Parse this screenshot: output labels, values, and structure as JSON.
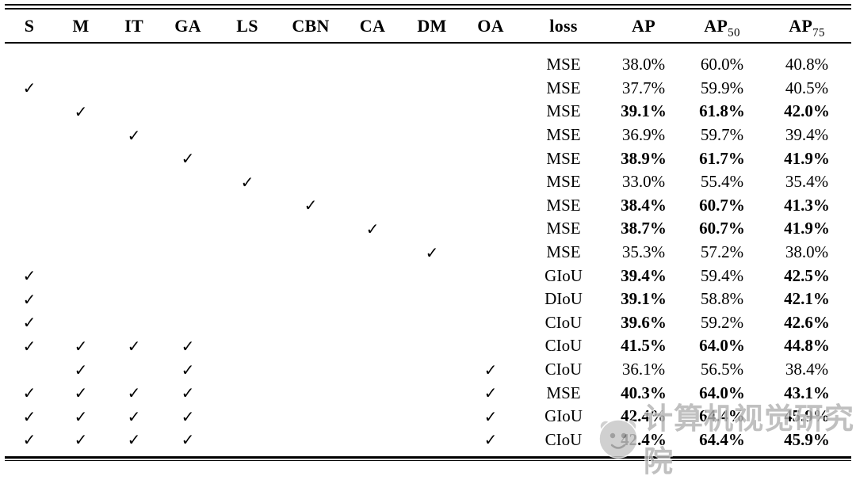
{
  "meta": {
    "description_label": "ablation study table",
    "background_color": "#ffffff",
    "text_color": "#000000"
  },
  "table": {
    "check_glyph": "✓",
    "columns": [
      {
        "key": "s",
        "label": "S"
      },
      {
        "key": "m",
        "label": "M"
      },
      {
        "key": "it",
        "label": "IT"
      },
      {
        "key": "ga",
        "label": "GA"
      },
      {
        "key": "ls",
        "label": "LS"
      },
      {
        "key": "cbn",
        "label": "CBN"
      },
      {
        "key": "ca",
        "label": "CA"
      },
      {
        "key": "dm",
        "label": "DM"
      },
      {
        "key": "oa",
        "label": "OA"
      },
      {
        "key": "loss",
        "label": "loss"
      },
      {
        "key": "ap",
        "label": "AP"
      },
      {
        "key": "ap50",
        "label": "AP",
        "sub": "50"
      },
      {
        "key": "ap75",
        "label": "AP",
        "sub": "75"
      }
    ],
    "rows": [
      {
        "checks": [],
        "loss": "MSE",
        "ap": "38.0%",
        "ap50": "60.0%",
        "ap75": "40.8%",
        "bold": []
      },
      {
        "checks": [
          "s"
        ],
        "loss": "MSE",
        "ap": "37.7%",
        "ap50": "59.9%",
        "ap75": "40.5%",
        "bold": []
      },
      {
        "checks": [
          "m"
        ],
        "loss": "MSE",
        "ap": "39.1%",
        "ap50": "61.8%",
        "ap75": "42.0%",
        "bold": [
          "ap",
          "ap50",
          "ap75"
        ]
      },
      {
        "checks": [
          "it"
        ],
        "loss": "MSE",
        "ap": "36.9%",
        "ap50": "59.7%",
        "ap75": "39.4%",
        "bold": []
      },
      {
        "checks": [
          "ga"
        ],
        "loss": "MSE",
        "ap": "38.9%",
        "ap50": "61.7%",
        "ap75": "41.9%",
        "bold": [
          "ap",
          "ap50",
          "ap75"
        ]
      },
      {
        "checks": [
          "ls"
        ],
        "loss": "MSE",
        "ap": "33.0%",
        "ap50": "55.4%",
        "ap75": "35.4%",
        "bold": []
      },
      {
        "checks": [
          "cbn"
        ],
        "loss": "MSE",
        "ap": "38.4%",
        "ap50": "60.7%",
        "ap75": "41.3%",
        "bold": [
          "ap",
          "ap50",
          "ap75"
        ]
      },
      {
        "checks": [
          "ca"
        ],
        "loss": "MSE",
        "ap": "38.7%",
        "ap50": "60.7%",
        "ap75": "41.9%",
        "bold": [
          "ap",
          "ap50",
          "ap75"
        ]
      },
      {
        "checks": [
          "dm"
        ],
        "loss": "MSE",
        "ap": "35.3%",
        "ap50": "57.2%",
        "ap75": "38.0%",
        "bold": []
      },
      {
        "checks": [
          "s"
        ],
        "loss": "GIoU",
        "ap": "39.4%",
        "ap50": "59.4%",
        "ap75": "42.5%",
        "bold": [
          "ap",
          "ap75"
        ]
      },
      {
        "checks": [
          "s"
        ],
        "loss": "DIoU",
        "ap": "39.1%",
        "ap50": "58.8%",
        "ap75": "42.1%",
        "bold": [
          "ap",
          "ap75"
        ]
      },
      {
        "checks": [
          "s"
        ],
        "loss": "CIoU",
        "ap": "39.6%",
        "ap50": "59.2%",
        "ap75": "42.6%",
        "bold": [
          "ap",
          "ap75"
        ]
      },
      {
        "checks": [
          "s",
          "m",
          "it",
          "ga"
        ],
        "loss": "CIoU",
        "ap": "41.5%",
        "ap50": "64.0%",
        "ap75": "44.8%",
        "bold": [
          "ap",
          "ap50",
          "ap75"
        ]
      },
      {
        "checks": [
          "m",
          "ga",
          "oa"
        ],
        "loss": "CIoU",
        "ap": "36.1%",
        "ap50": "56.5%",
        "ap75": "38.4%",
        "bold": []
      },
      {
        "checks": [
          "s",
          "m",
          "it",
          "ga",
          "oa"
        ],
        "loss": "MSE",
        "ap": "40.3%",
        "ap50": "64.0%",
        "ap75": "43.1%",
        "bold": [
          "ap",
          "ap50",
          "ap75"
        ]
      },
      {
        "checks": [
          "s",
          "m",
          "it",
          "ga",
          "oa"
        ],
        "loss": "GIoU",
        "ap": "42.4%",
        "ap50": "64.4%",
        "ap75": "45.9%",
        "bold": [
          "ap",
          "ap50",
          "ap75"
        ]
      },
      {
        "checks": [
          "s",
          "m",
          "it",
          "ga",
          "oa"
        ],
        "loss": "CIoU",
        "ap": "42.4%",
        "ap50": "64.4%",
        "ap75": "45.9%",
        "bold": [
          "ap",
          "ap50",
          "ap75"
        ]
      }
    ]
  },
  "watermark": {
    "text": "计算机视觉研究院",
    "color": "#b3b3b3"
  }
}
